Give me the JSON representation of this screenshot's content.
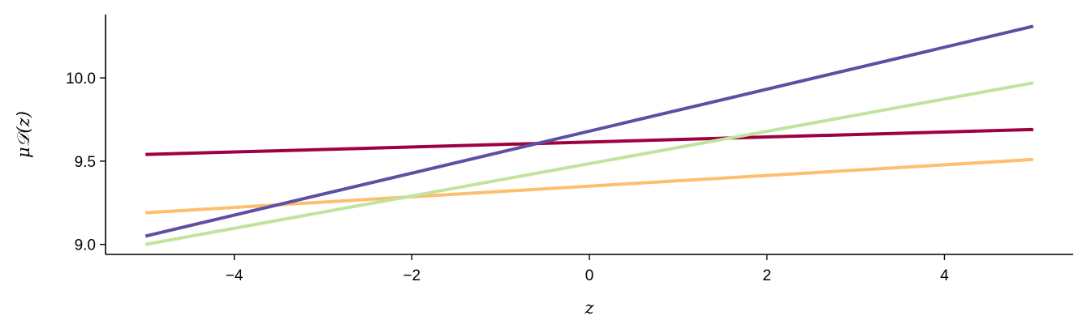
{
  "chart_data": {
    "type": "line",
    "title": "",
    "xlabel": "z",
    "ylabel": "μ𝒟(z)",
    "xlim": [
      -5.45,
      5.45
    ],
    "ylim": [
      8.94,
      10.38
    ],
    "xticks": [
      -4,
      -2,
      0,
      2,
      4
    ],
    "yticks": [
      9.0,
      9.5,
      10.0
    ],
    "xtick_labels": [
      "−4",
      "−2",
      "0",
      "2",
      "4"
    ],
    "ytick_labels": [
      "9.0",
      "9.5",
      "10.0"
    ],
    "grid": false,
    "legend": "none",
    "series": [
      {
        "color": "#9e0142",
        "x": [
          -5,
          5
        ],
        "y": [
          9.54,
          9.69
        ]
      },
      {
        "color": "#fdbf6f",
        "x": [
          -5,
          5
        ],
        "y": [
          9.19,
          9.51
        ]
      },
      {
        "color": "#c0e39e",
        "x": [
          -5,
          5
        ],
        "y": [
          9.0,
          9.97
        ]
      },
      {
        "color": "#5e4fa2",
        "x": [
          -5,
          5
        ],
        "y": [
          9.05,
          10.31
        ]
      }
    ]
  }
}
